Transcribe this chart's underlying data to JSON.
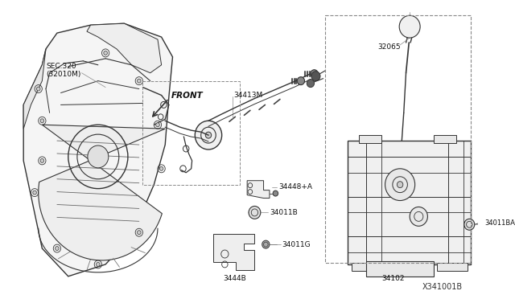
{
  "background_color": "#ffffff",
  "line_color": "#333333",
  "light_gray": "#cccccc",
  "mid_gray": "#888888",
  "diagram_id": "X341001B",
  "labels": {
    "sec320_line1": "SEC.320",
    "sec320_line2": "(32010M)",
    "front": "FRONT",
    "part_34413M": "34413M",
    "part_34448A": "34448+A",
    "part_34011B": "34011B",
    "part_34011G": "34011G",
    "part_3444B": "3444B",
    "part_32065": "32065",
    "part_34011BA": "34011BA",
    "part_34102": "34102",
    "diagram_ref": "X341001B"
  }
}
